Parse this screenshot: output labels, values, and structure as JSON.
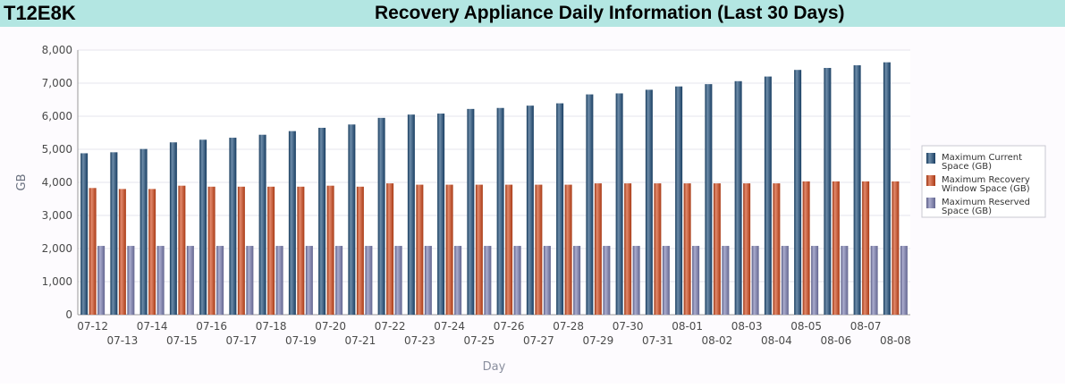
{
  "header": {
    "id": "T12E8K",
    "title": "Recovery Appliance Daily Information (Last 30 Days)"
  },
  "colors": {
    "current": "#1f4e7a",
    "recovery": "#d3491c",
    "reserved": "#7c7fb4",
    "header_bg": "#b3e6e2"
  },
  "chart_data": {
    "type": "bar",
    "xlabel": "Day",
    "ylabel": "GB",
    "ylim": [
      0,
      8000
    ],
    "yticks": [
      0,
      1000,
      2000,
      3000,
      4000,
      5000,
      6000,
      7000,
      8000
    ],
    "ytick_labels": [
      "0",
      "1,000",
      "2,000",
      "3,000",
      "4,000",
      "5,000",
      "6,000",
      "7,000",
      "8,000"
    ],
    "grid": true,
    "legend_position": "right",
    "categories": [
      "07-12",
      "07-13",
      "07-14",
      "07-15",
      "07-16",
      "07-17",
      "07-18",
      "07-19",
      "07-20",
      "07-21",
      "07-22",
      "07-23",
      "07-24",
      "07-25",
      "07-26",
      "07-27",
      "07-28",
      "07-29",
      "07-30",
      "07-31",
      "08-01",
      "08-02",
      "08-03",
      "08-04",
      "08-05",
      "08-06",
      "08-07",
      "08-08"
    ],
    "series": [
      {
        "name": "Maximum Current Space (GB)",
        "legend_lines": [
          "Maximum Current",
          "Space (GB)"
        ],
        "values": [
          4880,
          4910,
          5010,
          5210,
          5290,
          5350,
          5440,
          5550,
          5650,
          5750,
          5950,
          6050,
          6080,
          6220,
          6250,
          6320,
          6390,
          6660,
          6690,
          6800,
          6900,
          6970,
          7060,
          7200,
          7400,
          7460,
          7540,
          7630
        ]
      },
      {
        "name": "Maximum Recovery Window Space (GB)",
        "legend_lines": [
          "Maximum Recovery",
          "Window Space (GB)"
        ],
        "values": [
          3830,
          3800,
          3800,
          3900,
          3870,
          3870,
          3870,
          3870,
          3900,
          3870,
          3970,
          3930,
          3930,
          3930,
          3930,
          3930,
          3930,
          3970,
          3970,
          3970,
          3970,
          3970,
          3970,
          3970,
          4030,
          4030,
          4030,
          4030
        ]
      },
      {
        "name": "Maximum Reserved Space (GB)",
        "legend_lines": [
          "Maximum Reserved",
          "Space (GB)"
        ],
        "values": [
          2080,
          2080,
          2080,
          2080,
          2080,
          2080,
          2080,
          2080,
          2080,
          2080,
          2080,
          2080,
          2080,
          2080,
          2080,
          2080,
          2080,
          2080,
          2080,
          2080,
          2080,
          2080,
          2080,
          2080,
          2080,
          2080,
          2080,
          2080
        ]
      }
    ]
  }
}
